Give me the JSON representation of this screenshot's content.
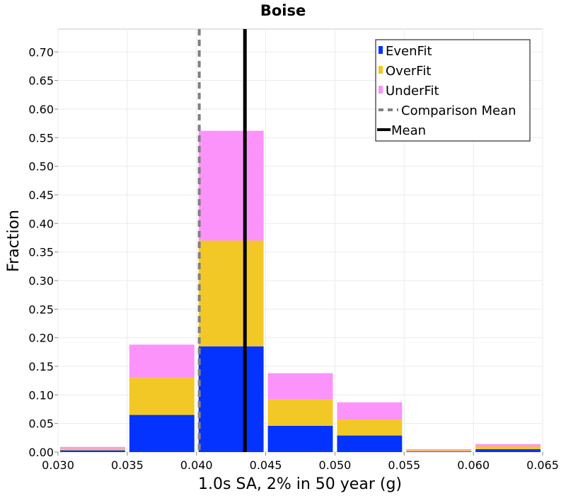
{
  "chart_data": {
    "type": "bar",
    "stacked": true,
    "title": "Boise",
    "xlabel": "1.0s SA, 2% in 50 year (g)",
    "ylabel": "Fraction",
    "xlim": [
      0.03,
      0.065
    ],
    "ylim": [
      0,
      0.74
    ],
    "x_ticks": [
      "0.030",
      "0.035",
      "0.040",
      "0.045",
      "0.050",
      "0.055",
      "0.060",
      "0.065"
    ],
    "y_ticks": [
      "0.00",
      "0.05",
      "0.10",
      "0.15",
      "0.20",
      "0.25",
      "0.30",
      "0.35",
      "0.40",
      "0.45",
      "0.50",
      "0.55",
      "0.60",
      "0.65",
      "0.70"
    ],
    "bins": [
      [
        0.03,
        0.035
      ],
      [
        0.035,
        0.04
      ],
      [
        0.04,
        0.045
      ],
      [
        0.045,
        0.05
      ],
      [
        0.05,
        0.055
      ],
      [
        0.055,
        0.06
      ],
      [
        0.06,
        0.065
      ]
    ],
    "series": [
      {
        "name": "EvenFit",
        "color": "#0433ff",
        "values": [
          0.003,
          0.065,
          0.185,
          0.046,
          0.029,
          0.001,
          0.005
        ]
      },
      {
        "name": "OverFit",
        "color": "#f2c826",
        "values": [
          0.003,
          0.065,
          0.185,
          0.046,
          0.028,
          0.002,
          0.005
        ]
      },
      {
        "name": "UnderFit",
        "color": "#fb93fb",
        "values": [
          0.003,
          0.058,
          0.192,
          0.046,
          0.03,
          0.002,
          0.004
        ]
      }
    ],
    "comparison_mean": {
      "name": "Comparison Mean",
      "x": 0.0402,
      "color": "#808080"
    },
    "mean": {
      "name": "Mean",
      "x": 0.0435,
      "color": "#000000"
    },
    "grid": true,
    "legend_position": "top-right"
  }
}
